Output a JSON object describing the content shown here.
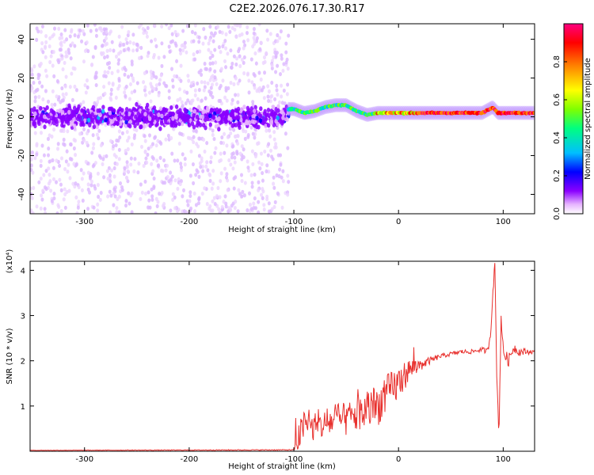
{
  "figure_title": "C2E2.2026.076.17.30.R17",
  "chart_data": [
    {
      "type": "heatmap",
      "xlabel": "Height of straight line (km)",
      "ylabel": "Frequency (Hz)",
      "xlim": [
        -352,
        130
      ],
      "ylim": [
        -50,
        48
      ],
      "xticks": [
        -300,
        -200,
        -100,
        0,
        100
      ],
      "yticks": [
        -40,
        -20,
        0,
        20,
        40
      ],
      "colorbar": {
        "label": "Normalized spectral amplitude",
        "range": [
          0.0,
          1.0
        ],
        "ticks": [
          "0.0",
          "0.2",
          "0.4",
          "0.6",
          "0.8"
        ],
        "colormap": [
          "#ffffff",
          "#e6b3ff",
          "#8a00ff",
          "#0000ff",
          "#00bfff",
          "#00ff80",
          "#7fff00",
          "#ffff00",
          "#ff8000",
          "#ff0000",
          "#ff0080"
        ]
      },
      "ridge": {
        "x": [
          -100,
          -90,
          -80,
          -70,
          -60,
          -50,
          -40,
          -30,
          -20,
          -10,
          0,
          10,
          20,
          40,
          60,
          80,
          90,
          95,
          100,
          110,
          130
        ],
        "y": [
          4,
          2,
          3,
          5,
          6,
          6,
          3,
          1,
          2,
          2,
          2,
          2,
          2,
          2,
          2,
          2,
          5,
          2,
          2,
          2,
          2
        ]
      },
      "noise_band_center_hz": 0,
      "noise_region_xmax": -105
    },
    {
      "type": "line",
      "xlabel": "Height of straight line (km)",
      "ylabel": "SNR (10 * v/v)",
      "scale_note": "(x10⁴)",
      "xlim": [
        -352,
        130
      ],
      "ylim": [
        0,
        4.2
      ],
      "xticks": [
        -300,
        -200,
        -100,
        0,
        100
      ],
      "yticks": [
        1,
        2,
        3,
        4
      ],
      "color": "#e8302d",
      "x": [
        -352,
        -100,
        -95,
        -90,
        -80,
        -70,
        -60,
        -50,
        -40,
        -30,
        -20,
        -10,
        0,
        10,
        20,
        30,
        40,
        50,
        60,
        70,
        80,
        85,
        88,
        90,
        92,
        94,
        96,
        98,
        100,
        105,
        110,
        115,
        120,
        125,
        130
      ],
      "y": [
        0.02,
        0.03,
        0.3,
        0.6,
        0.5,
        0.6,
        0.7,
        0.7,
        0.8,
        0.9,
        1.0,
        1.3,
        1.5,
        1.8,
        1.9,
        2.0,
        2.1,
        2.15,
        2.2,
        2.2,
        2.25,
        2.2,
        2.6,
        3.5,
        4.1,
        1.5,
        0.4,
        3.0,
        2.2,
        2.0,
        2.3,
        2.2,
        2.2,
        2.2,
        2.2
      ],
      "noise_amplitude": {
        "x": [
          -352,
          -100,
          -95,
          -80,
          -60,
          -40,
          -20,
          0,
          10,
          20,
          30,
          40,
          60,
          80,
          100,
          130
        ],
        "y": [
          0.005,
          0.01,
          0.35,
          0.3,
          0.35,
          0.4,
          0.45,
          0.4,
          0.25,
          0.15,
          0.08,
          0.05,
          0.05,
          0.05,
          0.15,
          0.04
        ]
      }
    }
  ]
}
